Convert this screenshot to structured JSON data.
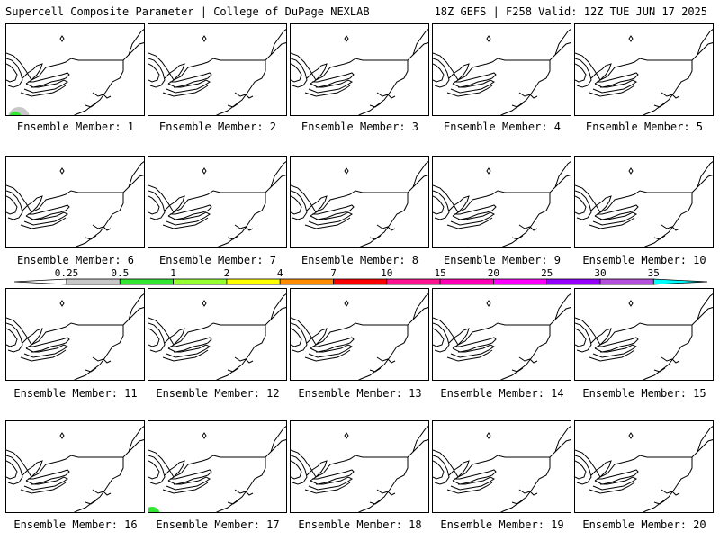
{
  "header": {
    "title": "Supercell Composite Parameter | College of DuPage NEXLAB",
    "valid": "18Z GEFS | F258 Valid: 12Z TUE JUN 17 2025"
  },
  "panels": [
    {
      "label": "Ensemble Member: 1"
    },
    {
      "label": "Ensemble Member: 2"
    },
    {
      "label": "Ensemble Member: 3"
    },
    {
      "label": "Ensemble Member: 4"
    },
    {
      "label": "Ensemble Member: 5"
    },
    {
      "label": "Ensemble Member: 6"
    },
    {
      "label": "Ensemble Member: 7"
    },
    {
      "label": "Ensemble Member: 8"
    },
    {
      "label": "Ensemble Member: 9"
    },
    {
      "label": "Ensemble Member: 10"
    },
    {
      "label": "Ensemble Member: 11"
    },
    {
      "label": "Ensemble Member: 12"
    },
    {
      "label": "Ensemble Member: 13"
    },
    {
      "label": "Ensemble Member: 14"
    },
    {
      "label": "Ensemble Member: 15"
    },
    {
      "label": "Ensemble Member: 16"
    },
    {
      "label": "Ensemble Member: 17"
    },
    {
      "label": "Ensemble Member: 18"
    },
    {
      "label": "Ensemble Member: 19"
    },
    {
      "label": "Ensemble Member: 20"
    }
  ],
  "colorbar": {
    "labels": [
      "0.25",
      "0.5",
      "1",
      "2",
      "4",
      "7",
      "10",
      "15",
      "20",
      "25",
      "30",
      "35"
    ],
    "colors": [
      "#c8c8c8",
      "#32e632",
      "#96ff32",
      "#ffff00",
      "#ff8c00",
      "#ff0000",
      "#ff1493",
      "#ff00b4",
      "#ff00ff",
      "#9600ff",
      "#b450dc",
      "#00ffff"
    ]
  }
}
